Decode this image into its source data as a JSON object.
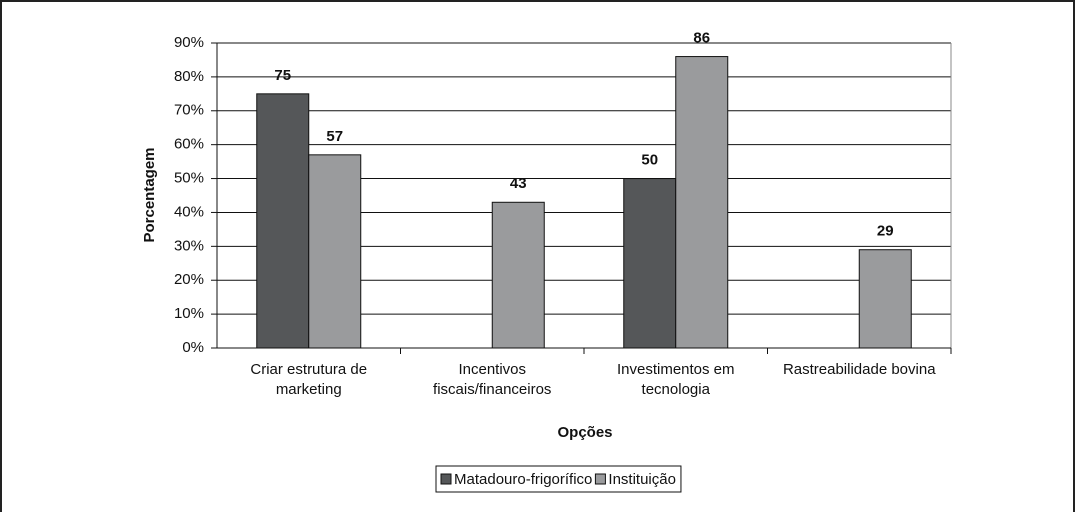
{
  "chart_data": {
    "type": "bar",
    "categories": [
      "Criar estrutura de marketing",
      "Incentivos fiscais/financeiros",
      "Investimentos em tecnologia",
      "Rastreabilidade bovina"
    ],
    "series": [
      {
        "name": "Matadouro-frigorífico",
        "color": "#555759",
        "values": [
          75,
          null,
          50,
          null
        ]
      },
      {
        "name": "Instituição",
        "color": "#9a9b9d",
        "values": [
          57,
          43,
          86,
          29
        ]
      }
    ],
    "ylim": [
      0,
      90
    ],
    "yticks": [
      {
        "value": 0,
        "label": "0%"
      },
      {
        "value": 10,
        "label": "10%"
      },
      {
        "value": 20,
        "label": "20%"
      },
      {
        "value": 30,
        "label": "30%"
      },
      {
        "value": 40,
        "label": "40%"
      },
      {
        "value": 50,
        "label": "50%"
      },
      {
        "value": 60,
        "label": "60%"
      },
      {
        "value": 70,
        "label": "70%"
      },
      {
        "value": 80,
        "label": "80%"
      },
      {
        "value": 90,
        "label": "90%"
      }
    ],
    "xlabel": "Opções",
    "ylabel": "Porcentagem",
    "grid": true,
    "legend": "bottom"
  }
}
